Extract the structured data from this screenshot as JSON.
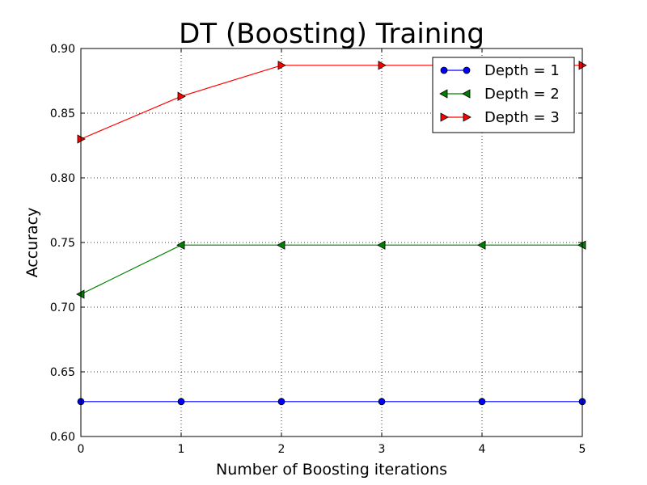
{
  "chart_data": {
    "type": "line",
    "title": "DT (Boosting) Training",
    "xlabel": "Number of Boosting iterations",
    "ylabel": "Accuracy",
    "x": [
      0,
      1,
      2,
      3,
      4,
      5
    ],
    "xlim": [
      0,
      5
    ],
    "ylim": [
      0.6,
      0.9
    ],
    "x_ticks": [
      "0",
      "1",
      "2",
      "3",
      "4",
      "5"
    ],
    "y_ticks": [
      "0.60",
      "0.65",
      "0.70",
      "0.75",
      "0.80",
      "0.85",
      "0.90"
    ],
    "grid": true,
    "legend_position": "top-right",
    "series": [
      {
        "name": "Depth = 1",
        "color": "#0000ff",
        "marker": "circle",
        "values": [
          0.627,
          0.627,
          0.627,
          0.627,
          0.627,
          0.627
        ]
      },
      {
        "name": "Depth = 2",
        "color": "#008000",
        "marker": "triangle-left",
        "values": [
          0.71,
          0.748,
          0.748,
          0.748,
          0.748,
          0.748
        ]
      },
      {
        "name": "Depth = 3",
        "color": "#ff0000",
        "marker": "triangle-right",
        "values": [
          0.83,
          0.863,
          0.887,
          0.887,
          0.887,
          0.887
        ]
      }
    ]
  }
}
